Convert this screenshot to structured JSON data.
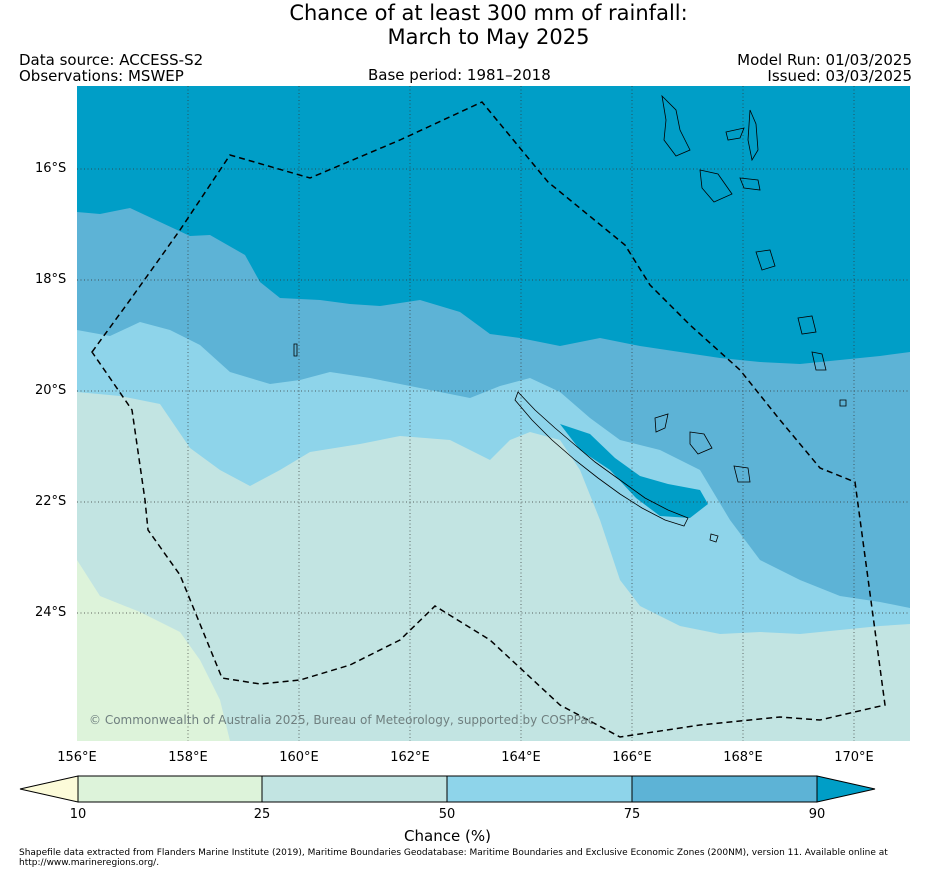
{
  "title_line1": "Chance of at least 300 mm of rainfall:",
  "title_line2": "March to May 2025",
  "data_source": "Data source: ACCESS-S2",
  "observations": "Observations: MSWEP",
  "base_period": "Base period: 1981–2018",
  "model_run": "Model Run: 01/03/2025",
  "issued": "Issued: 03/03/2025",
  "copyright": "© Commonwealth of Australia 2025, Bureau of Meteorology, supported by COSPPac",
  "lat_labels": [
    "16°S",
    "18°S",
    "20°S",
    "22°S",
    "24°S"
  ],
  "lon_labels": [
    "156°E",
    "158°E",
    "160°E",
    "162°E",
    "164°E",
    "166°E",
    "168°E",
    "170°E"
  ],
  "colorbar": {
    "ticks": [
      "10",
      "25",
      "50",
      "75",
      "90"
    ],
    "label": "Chance (%)",
    "colors": {
      "below_10": "#fcfbd9",
      "c10_25": "#ddf3da",
      "c25_50": "#c2e4e2",
      "c50_75": "#8ed4ea",
      "c75_90": "#5db3d6",
      "above_90": "#009ec7"
    }
  },
  "footnote": "Shapefile data extracted from Flanders Marine Institute (2019), Maritime Boundaries Geodatabase: Maritime Boundaries and Exclusive Economic Zones (200NM), version 11. Available online at http://www.marineregions.org/."
}
